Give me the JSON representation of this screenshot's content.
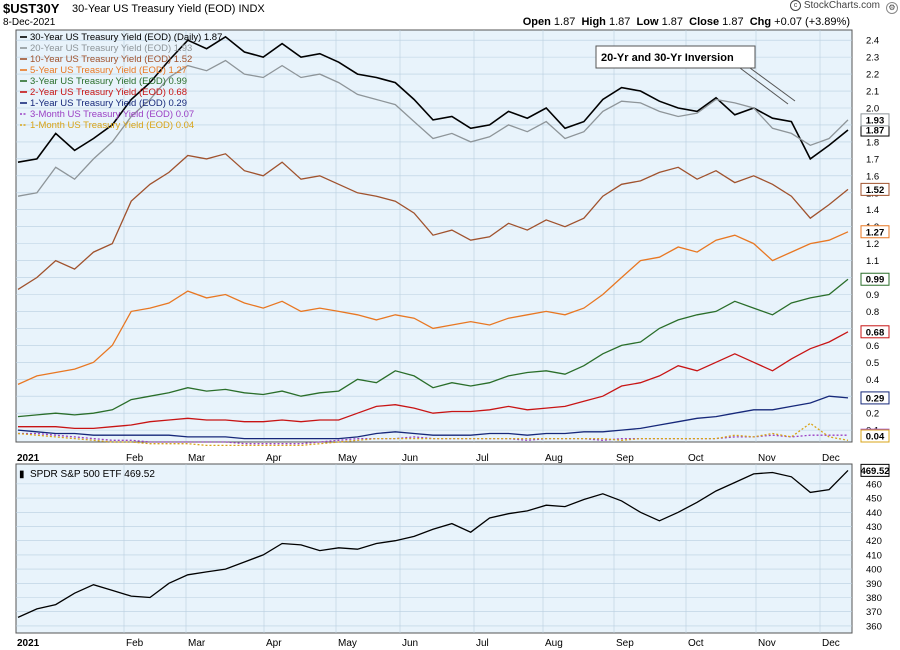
{
  "header": {
    "symbol": "$UST30Y",
    "description": "30-Year US Treasury Yield (EOD) INDX",
    "date": "8-Dec-2021",
    "open_label": "Open",
    "open": "1.87",
    "high_label": "High",
    "high": "1.87",
    "low_label": "Low",
    "low": "1.87",
    "close_label": "Close",
    "close": "1.87",
    "chg_label": "Chg",
    "chg": "+0.07 (+3.89%)",
    "logo": "StockCharts.com"
  },
  "annotation": "20-Yr and 30-Yr Inversion",
  "colors": {
    "panel_bg": "#e8f3fb",
    "grid": "#b9cfe0",
    "border": "#555555"
  },
  "chart_data": [
    {
      "type": "line",
      "xlabel_months": [
        "2021",
        "Feb",
        "Mar",
        "Apr",
        "May",
        "Jun",
        "Jul",
        "Aug",
        "Sep",
        "Oct",
        "Nov",
        "Dec"
      ],
      "ylim": [
        0.03,
        2.46
      ],
      "y_ticks": [
        "0.1",
        "0.2",
        "0.3",
        "0.4",
        "0.5",
        "0.6",
        "0.7",
        "0.8",
        "0.9",
        "1.0",
        "1.1",
        "1.2",
        "1.3",
        "1.4",
        "1.5",
        "1.6",
        "1.7",
        "1.8",
        "1.9",
        "2.0",
        "2.1",
        "2.2",
        "2.3",
        "2.4"
      ],
      "grid": true,
      "legend_position": "top-left",
      "series": [
        {
          "name": "30-Year US Treasury Yield (EOD) (Daily) 1.87",
          "color": "#000000",
          "last": "1.87",
          "values": [
            1.68,
            1.7,
            1.85,
            1.75,
            1.82,
            1.9,
            2.05,
            2.15,
            2.28,
            2.4,
            2.35,
            2.42,
            2.33,
            2.3,
            2.38,
            2.3,
            2.32,
            2.27,
            2.2,
            2.18,
            2.15,
            2.05,
            1.93,
            1.95,
            1.88,
            1.9,
            1.98,
            1.94,
            2.0,
            1.88,
            1.92,
            2.05,
            2.12,
            2.1,
            2.04,
            2.0,
            1.98,
            2.06,
            1.96,
            2.0,
            1.94,
            1.92,
            1.7,
            1.78,
            1.87
          ]
        },
        {
          "name": "20-Year US Treasury Yield (EOD) 1.93",
          "color": "#8e9599",
          "last": "1.93",
          "values": [
            1.48,
            1.5,
            1.65,
            1.58,
            1.7,
            1.8,
            1.95,
            2.05,
            2.18,
            2.25,
            2.22,
            2.28,
            2.2,
            2.18,
            2.25,
            2.18,
            2.2,
            2.15,
            2.08,
            2.05,
            2.02,
            1.92,
            1.82,
            1.85,
            1.8,
            1.83,
            1.9,
            1.86,
            1.92,
            1.82,
            1.86,
            1.98,
            2.04,
            2.03,
            1.98,
            1.95,
            1.97,
            2.05,
            2.03,
            2.0,
            1.88,
            1.85,
            1.78,
            1.82,
            1.93
          ]
        },
        {
          "name": "10-Year US Treasury Yield (EOD) 1.52",
          "color": "#a0522d",
          "last": "1.52",
          "values": [
            0.93,
            1.0,
            1.1,
            1.05,
            1.15,
            1.2,
            1.45,
            1.55,
            1.62,
            1.72,
            1.7,
            1.73,
            1.63,
            1.6,
            1.68,
            1.58,
            1.6,
            1.55,
            1.5,
            1.48,
            1.45,
            1.38,
            1.25,
            1.28,
            1.22,
            1.24,
            1.32,
            1.28,
            1.34,
            1.3,
            1.35,
            1.48,
            1.55,
            1.57,
            1.62,
            1.65,
            1.58,
            1.63,
            1.56,
            1.6,
            1.55,
            1.48,
            1.35,
            1.43,
            1.52
          ]
        },
        {
          "name": "5-Year US Treasury Yield (EOD) 1.27",
          "color": "#e87722",
          "last": "1.27",
          "values": [
            0.37,
            0.42,
            0.44,
            0.46,
            0.5,
            0.6,
            0.8,
            0.82,
            0.85,
            0.92,
            0.88,
            0.9,
            0.85,
            0.82,
            0.86,
            0.8,
            0.82,
            0.8,
            0.78,
            0.75,
            0.78,
            0.76,
            0.7,
            0.72,
            0.74,
            0.72,
            0.76,
            0.78,
            0.8,
            0.78,
            0.82,
            0.9,
            1.0,
            1.1,
            1.12,
            1.18,
            1.15,
            1.22,
            1.25,
            1.2,
            1.1,
            1.15,
            1.2,
            1.22,
            1.27
          ]
        },
        {
          "name": "3-Year US Treasury Yield (EOD) 0.99",
          "color": "#2a6e2a",
          "last": "0.99",
          "values": [
            0.18,
            0.19,
            0.2,
            0.19,
            0.2,
            0.22,
            0.28,
            0.3,
            0.32,
            0.35,
            0.33,
            0.34,
            0.32,
            0.31,
            0.33,
            0.3,
            0.32,
            0.33,
            0.4,
            0.38,
            0.45,
            0.42,
            0.35,
            0.38,
            0.36,
            0.38,
            0.42,
            0.44,
            0.45,
            0.43,
            0.48,
            0.55,
            0.6,
            0.62,
            0.7,
            0.75,
            0.78,
            0.8,
            0.86,
            0.82,
            0.78,
            0.85,
            0.88,
            0.9,
            0.99
          ]
        },
        {
          "name": "2-Year US Treasury Yield (EOD) 0.68",
          "color": "#c81414",
          "last": "0.68",
          "values": [
            0.12,
            0.12,
            0.12,
            0.11,
            0.11,
            0.12,
            0.13,
            0.15,
            0.16,
            0.17,
            0.16,
            0.16,
            0.15,
            0.15,
            0.16,
            0.15,
            0.16,
            0.16,
            0.2,
            0.24,
            0.25,
            0.23,
            0.2,
            0.21,
            0.21,
            0.22,
            0.24,
            0.22,
            0.23,
            0.24,
            0.27,
            0.3,
            0.36,
            0.38,
            0.42,
            0.48,
            0.45,
            0.5,
            0.55,
            0.5,
            0.45,
            0.52,
            0.58,
            0.62,
            0.68
          ]
        },
        {
          "name": "1-Year US Treasury Yield (EOD) 0.29",
          "color": "#16287a",
          "last": "0.29",
          "values": [
            0.1,
            0.09,
            0.08,
            0.08,
            0.07,
            0.07,
            0.07,
            0.07,
            0.07,
            0.06,
            0.06,
            0.06,
            0.05,
            0.05,
            0.05,
            0.05,
            0.05,
            0.05,
            0.06,
            0.08,
            0.09,
            0.08,
            0.07,
            0.07,
            0.07,
            0.08,
            0.08,
            0.07,
            0.08,
            0.08,
            0.09,
            0.09,
            0.1,
            0.11,
            0.13,
            0.15,
            0.17,
            0.18,
            0.2,
            0.22,
            0.22,
            0.24,
            0.26,
            0.3,
            0.29
          ]
        },
        {
          "name": "3-Month US Treasury Yield (EOD) 0.07",
          "color": "#9b40c4",
          "last": "0.07",
          "dashed": true,
          "values": [
            0.08,
            0.08,
            0.07,
            0.06,
            0.05,
            0.04,
            0.04,
            0.03,
            0.03,
            0.03,
            0.03,
            0.03,
            0.02,
            0.02,
            0.02,
            0.02,
            0.03,
            0.04,
            0.05,
            0.05,
            0.05,
            0.06,
            0.05,
            0.05,
            0.05,
            0.05,
            0.05,
            0.04,
            0.05,
            0.05,
            0.05,
            0.04,
            0.05,
            0.05,
            0.05,
            0.05,
            0.05,
            0.05,
            0.06,
            0.06,
            0.07,
            0.06,
            0.07,
            0.07,
            0.07
          ]
        },
        {
          "name": "1-Month US Treasury Yield (EOD) 0.04",
          "color": "#d8a418",
          "last": "0.04",
          "dashed": true,
          "values": [
            0.08,
            0.07,
            0.06,
            0.05,
            0.04,
            0.03,
            0.03,
            0.02,
            0.02,
            0.02,
            0.01,
            0.01,
            0.01,
            0.01,
            0.01,
            0.01,
            0.02,
            0.03,
            0.04,
            0.05,
            0.05,
            0.05,
            0.05,
            0.05,
            0.05,
            0.05,
            0.05,
            0.05,
            0.05,
            0.05,
            0.05,
            0.05,
            0.04,
            0.05,
            0.05,
            0.05,
            0.05,
            0.05,
            0.07,
            0.06,
            0.08,
            0.06,
            0.14,
            0.06,
            0.04
          ]
        }
      ]
    },
    {
      "type": "line",
      "xlabel_months": [
        "2021",
        "Feb",
        "Mar",
        "Apr",
        "May",
        "Jun",
        "Jul",
        "Aug",
        "Sep",
        "Oct",
        "Nov",
        "Dec"
      ],
      "ylim": [
        355,
        474
      ],
      "y_ticks": [
        "360",
        "370",
        "380",
        "390",
        "400",
        "410",
        "420",
        "430",
        "440",
        "450",
        "460"
      ],
      "grid": true,
      "legend_position": "top-left",
      "series": [
        {
          "name": "SPDR S&P 500 ETF 469.52",
          "color": "#000000",
          "last": "469.52",
          "values": [
            366,
            372,
            375,
            383,
            389,
            385,
            381,
            380,
            390,
            396,
            398,
            400,
            405,
            410,
            418,
            417,
            413,
            415,
            414,
            418,
            420,
            423,
            428,
            432,
            426,
            436,
            439,
            441,
            445,
            444,
            449,
            453,
            448,
            440,
            434,
            440,
            447,
            455,
            461,
            467,
            468,
            465,
            454,
            456,
            469.52
          ]
        }
      ]
    }
  ]
}
